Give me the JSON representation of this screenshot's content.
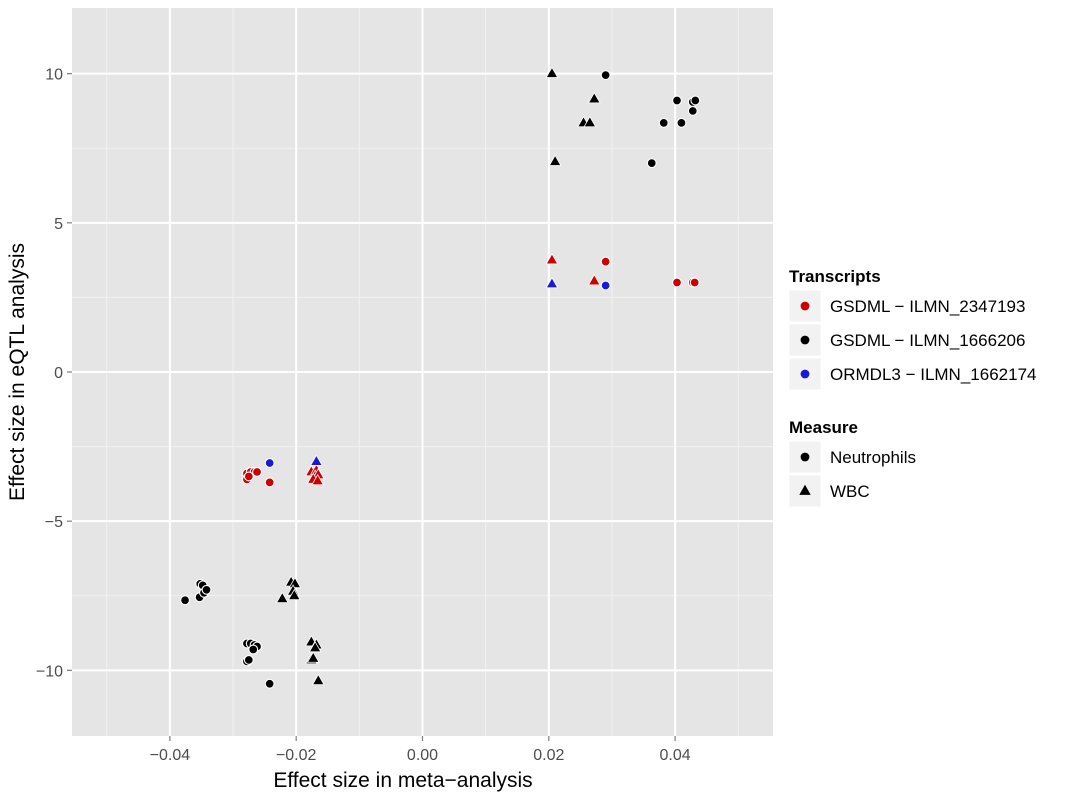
{
  "chart_data": {
    "type": "scatter",
    "xlabel": "Effect size in meta−analysis",
    "ylabel": "Effect size in eQTL analysis",
    "xlim": [
      -0.0555,
      0.0555
    ],
    "ylim": [
      -12.2,
      12.2
    ],
    "x_ticks": [
      -0.04,
      -0.02,
      0.0,
      0.02,
      0.04
    ],
    "x_tick_labels": [
      "−0.04",
      "−0.02",
      "0.00",
      "0.02",
      "0.04"
    ],
    "y_ticks": [
      -10,
      -5,
      0,
      5,
      10
    ],
    "y_tick_labels": [
      "−10",
      "−5",
      "0",
      "5",
      "10"
    ],
    "grid": true,
    "background": "#e5e5e5",
    "legend_position": "right",
    "legends": [
      {
        "title": "Transcripts",
        "key": "color",
        "entries": [
          {
            "label": "GSDML − ILMN_2347193",
            "color": "#cc0000",
            "shape": "circle"
          },
          {
            "label": "GSDML − ILMN_1666206",
            "color": "#000000",
            "shape": "circle"
          },
          {
            "label": "ORMDL3 − ILMN_1662174",
            "color": "#1a1ad6",
            "shape": "circle"
          }
        ]
      },
      {
        "title": "Measure",
        "key": "shape",
        "entries": [
          {
            "label": "Neutrophils",
            "color": "#000000",
            "shape": "circle"
          },
          {
            "label": "WBC",
            "color": "#000000",
            "shape": "triangle"
          }
        ]
      }
    ],
    "series": [
      {
        "transcript": "GSDML − ILMN_1666206",
        "measure": "Neutrophils",
        "color": "#000000",
        "shape": "circle",
        "points": [
          [
            0.029,
            9.95
          ],
          [
            0.0403,
            9.1
          ],
          [
            0.0428,
            9.05
          ],
          [
            0.0432,
            9.1
          ],
          [
            0.0428,
            8.75
          ],
          [
            0.0382,
            8.35
          ],
          [
            0.041,
            8.35
          ],
          [
            0.0363,
            7.0
          ],
          [
            -0.0376,
            -7.65
          ],
          [
            -0.0353,
            -7.55
          ],
          [
            -0.0352,
            -7.1
          ],
          [
            -0.0348,
            -7.15
          ],
          [
            -0.0346,
            -7.4
          ],
          [
            -0.0342,
            -7.3
          ],
          [
            -0.0278,
            -9.1
          ],
          [
            -0.0272,
            -9.1
          ],
          [
            -0.0266,
            -9.15
          ],
          [
            -0.0262,
            -9.2
          ],
          [
            -0.0268,
            -9.3
          ],
          [
            -0.0278,
            -9.7
          ],
          [
            -0.0275,
            -9.65
          ],
          [
            -0.0242,
            -10.45
          ]
        ]
      },
      {
        "transcript": "GSDML − ILMN_1666206",
        "measure": "WBC",
        "color": "#000000",
        "shape": "triangle",
        "points": [
          [
            0.0205,
            10.0
          ],
          [
            0.0272,
            9.15
          ],
          [
            0.0255,
            8.35
          ],
          [
            0.0265,
            8.35
          ],
          [
            0.021,
            7.05
          ],
          [
            -0.0208,
            -7.05
          ],
          [
            -0.0202,
            -7.1
          ],
          [
            -0.0205,
            -7.35
          ],
          [
            -0.0203,
            -7.5
          ],
          [
            -0.0222,
            -7.6
          ],
          [
            -0.0176,
            -9.05
          ],
          [
            -0.0168,
            -9.15
          ],
          [
            -0.017,
            -9.25
          ],
          [
            -0.0176,
            -9.65
          ],
          [
            -0.0173,
            -9.6
          ],
          [
            -0.0165,
            -10.35
          ]
        ]
      },
      {
        "transcript": "GSDML − ILMN_2347193",
        "measure": "Neutrophils",
        "color": "#cc0000",
        "shape": "circle",
        "points": [
          [
            0.029,
            3.7
          ],
          [
            0.0403,
            3.0
          ],
          [
            0.0428,
            3.0
          ],
          [
            0.0431,
            3.0
          ],
          [
            -0.0278,
            -3.4
          ],
          [
            -0.0272,
            -3.35
          ],
          [
            -0.0266,
            -3.35
          ],
          [
            -0.0262,
            -3.35
          ],
          [
            -0.0278,
            -3.6
          ],
          [
            -0.0275,
            -3.5
          ],
          [
            -0.0242,
            -3.7
          ]
        ]
      },
      {
        "transcript": "GSDML − ILMN_2347193",
        "measure": "WBC",
        "color": "#cc0000",
        "shape": "triangle",
        "points": [
          [
            0.0205,
            3.75
          ],
          [
            0.0272,
            3.05
          ],
          [
            -0.0176,
            -3.35
          ],
          [
            -0.0168,
            -3.3
          ],
          [
            -0.017,
            -3.5
          ],
          [
            -0.0165,
            -3.45
          ],
          [
            -0.0173,
            -3.6
          ],
          [
            -0.0166,
            -3.65
          ]
        ]
      },
      {
        "transcript": "ORMDL3 − ILMN_1662174",
        "measure": "Neutrophils",
        "color": "#1a1ad6",
        "shape": "circle",
        "points": [
          [
            0.029,
            2.9
          ],
          [
            -0.0242,
            -3.05
          ]
        ]
      },
      {
        "transcript": "ORMDL3 − ILMN_1662174",
        "measure": "WBC",
        "color": "#1a1ad6",
        "shape": "triangle",
        "points": [
          [
            0.0205,
            2.95
          ],
          [
            -0.0168,
            -3.0
          ]
        ]
      }
    ]
  }
}
